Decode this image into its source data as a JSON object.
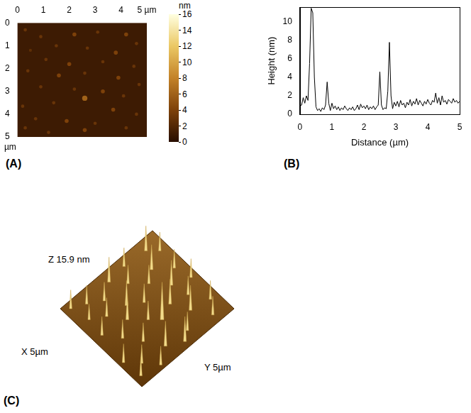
{
  "chart_data": [
    {
      "panel": "(A)",
      "type": "scatter",
      "xlim": [
        0,
        5
      ],
      "xticks": [
        0,
        1,
        2,
        3,
        4,
        {
          "value": 5,
          "label": "5 µm"
        }
      ],
      "ylim": [
        0,
        5
      ],
      "yticks": [
        0,
        1,
        2,
        3,
        4,
        5
      ],
      "y_unit": "µm",
      "background_height": 1,
      "grid": false,
      "points": {
        "x": [
          0.3,
          0.9,
          2.2,
          3.1,
          4.2,
          4.6,
          1.5,
          0.5,
          2.7,
          3.8,
          1.1,
          2.0,
          3.3,
          4.5,
          0.4,
          1.6,
          2.6,
          3.9,
          4.7,
          0.9,
          2.2,
          3.3,
          4.1,
          2.6,
          1.4,
          0.2,
          3.7,
          4.6,
          0.7,
          1.9,
          3.0,
          4.2,
          1.2,
          2.6,
          0.3
        ],
        "y": [
          0.3,
          0.6,
          0.5,
          0.4,
          0.5,
          0.9,
          1.0,
          1.2,
          1.1,
          1.3,
          1.6,
          1.8,
          1.7,
          1.9,
          2.1,
          2.3,
          2.2,
          2.4,
          2.7,
          2.8,
          2.9,
          3.0,
          3.2,
          3.3,
          3.5,
          3.65,
          3.8,
          4.0,
          4.2,
          4.3,
          4.4,
          4.6,
          4.8,
          4.7,
          4.6
        ],
        "height": [
          3,
          3,
          4,
          3,
          4,
          3,
          3,
          2.5,
          3,
          4,
          3,
          4,
          3,
          3,
          3,
          4,
          3,
          4,
          3,
          3,
          3,
          4,
          3,
          6,
          3,
          3,
          4,
          3,
          3,
          4,
          3,
          3,
          3,
          4,
          3
        ]
      },
      "colorbar": {
        "label": "nm",
        "range": [
          0,
          16
        ],
        "ticks": [
          0,
          2,
          4,
          6,
          8,
          10,
          12,
          14,
          16
        ]
      }
    },
    {
      "panel": "(B)",
      "type": "line",
      "x_label": "Distance (µm)",
      "y_label": "Height (nm)",
      "xlim": [
        0,
        5
      ],
      "xticks": [
        0,
        1,
        2,
        3,
        4,
        5
      ],
      "ylim": [
        0,
        11.6
      ],
      "yticks": [
        0,
        2,
        4,
        6,
        8,
        10
      ],
      "color": "#000000",
      "grid": false,
      "x": [
        0,
        0.05,
        0.1,
        0.15,
        0.2,
        0.25,
        0.3,
        0.35,
        0.4,
        0.45,
        0.5,
        0.55,
        0.6,
        0.65,
        0.7,
        0.75,
        0.8,
        0.85,
        0.9,
        0.95,
        1.0,
        1.05,
        1.1,
        1.15,
        1.2,
        1.25,
        1.3,
        1.35,
        1.4,
        1.45,
        1.5,
        1.55,
        1.6,
        1.65,
        1.7,
        1.75,
        1.8,
        1.85,
        1.9,
        1.95,
        2.0,
        2.05,
        2.1,
        2.15,
        2.2,
        2.25,
        2.3,
        2.35,
        2.4,
        2.45,
        2.5,
        2.55,
        2.6,
        2.65,
        2.7,
        2.75,
        2.8,
        2.85,
        2.9,
        2.95,
        3.0,
        3.05,
        3.1,
        3.15,
        3.2,
        3.25,
        3.3,
        3.35,
        3.4,
        3.45,
        3.5,
        3.55,
        3.6,
        3.65,
        3.7,
        3.75,
        3.8,
        3.85,
        3.9,
        3.95,
        4.0,
        4.05,
        4.1,
        4.15,
        4.2,
        4.25,
        4.3,
        4.35,
        4.4,
        4.45,
        4.5,
        4.55,
        4.6,
        4.65,
        4.7,
        4.75,
        4.8,
        4.85,
        4.9,
        4.95,
        5.0
      ],
      "values": [
        0.9,
        1.0,
        1.8,
        1.2,
        2.0,
        1.5,
        5.5,
        11.5,
        11.0,
        4.0,
        0.8,
        0.4,
        0.6,
        0.3,
        0.7,
        0.5,
        1.0,
        3.5,
        1.2,
        0.4,
        1.2,
        0.6,
        0.9,
        0.5,
        0.8,
        0.4,
        0.7,
        0.5,
        0.9,
        0.6,
        0.4,
        0.7,
        0.5,
        0.8,
        0.4,
        0.6,
        1.0,
        0.5,
        1.1,
        0.7,
        0.9,
        0.6,
        1.0,
        0.5,
        0.8,
        0.6,
        0.9,
        0.5,
        0.8,
        1.0,
        4.6,
        1.0,
        0.5,
        0.7,
        0.6,
        2.5,
        7.8,
        2.0,
        0.6,
        1.3,
        0.9,
        1.4,
        0.8,
        1.5,
        1.0,
        1.2,
        0.7,
        1.3,
        1.0,
        1.6,
        0.9,
        1.4,
        1.1,
        1.7,
        1.0,
        1.5,
        1.2,
        0.9,
        1.4,
        1.1,
        1.6,
        1.2,
        1.0,
        1.5,
        1.3,
        2.3,
        1.2,
        1.8,
        1.0,
        2.0,
        1.3,
        1.5,
        1.1,
        1.6,
        1.4,
        1.2,
        1.7,
        1.3,
        1.5,
        1.2,
        1.4
      ]
    },
    {
      "panel": "(C)",
      "type": "surface",
      "z_label": "Z 15.9 nm",
      "x_label": "X 5µm",
      "y_label": "Y 5µm",
      "zlim": [
        0,
        15.9
      ]
    }
  ]
}
